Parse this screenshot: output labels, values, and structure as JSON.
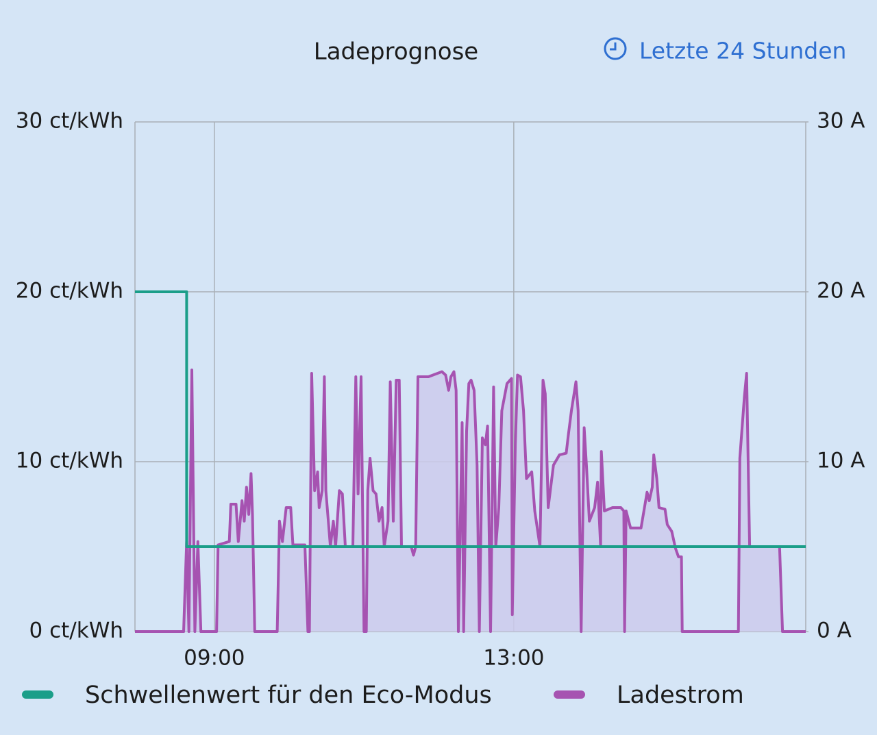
{
  "chart_data": {
    "type": "line",
    "title": "Ladeprognose",
    "range_button": "Letzte 24 Stunden",
    "xlim": [
      7.94,
      16.9
    ],
    "xticks": [
      {
        "value": 9,
        "label": "09:00"
      },
      {
        "value": 13,
        "label": "13:00"
      }
    ],
    "ylim": [
      0,
      30
    ],
    "yticks": [
      {
        "value": 0,
        "label": "0 ct/kWh"
      },
      {
        "value": 10,
        "label": "10 ct/kWh"
      },
      {
        "value": 20,
        "label": "20 ct/kWh"
      },
      {
        "value": 30,
        "label": "30 ct/kWh"
      }
    ],
    "y2lim": [
      0,
      30
    ],
    "y2ticks": [
      {
        "value": 0,
        "label": "0 A"
      },
      {
        "value": 10,
        "label": "10 A"
      },
      {
        "value": 20,
        "label": "20 A"
      },
      {
        "value": 30,
        "label": "30 A"
      }
    ],
    "grid": true,
    "legend": "bottom",
    "series": [
      {
        "name": "Schwellenwert für den Eco-Modus",
        "color": "#1b9e89",
        "x": [
          7.94,
          8.63,
          8.63,
          16.9
        ],
        "values": [
          20,
          20,
          5,
          5
        ]
      },
      {
        "name": "Ladestrom",
        "color": "#a653b1",
        "axis": "y2",
        "fill": "#cccbec",
        "x": [
          7.94,
          8.59,
          8.63,
          8.66,
          8.7,
          8.74,
          8.78,
          8.82,
          9.03,
          9.05,
          9.2,
          9.22,
          9.29,
          9.32,
          9.37,
          9.4,
          9.43,
          9.46,
          9.49,
          9.51,
          9.54,
          9.84,
          9.87,
          9.91,
          9.96,
          10.02,
          10.05,
          10.21,
          10.25,
          10.27,
          10.3,
          10.34,
          10.38,
          10.4,
          10.44,
          10.47,
          10.49,
          10.55,
          10.59,
          10.62,
          10.67,
          10.71,
          10.75,
          10.85,
          10.89,
          10.92,
          10.96,
          11.0,
          11.03,
          11.05,
          11.08,
          11.12,
          11.16,
          11.2,
          11.24,
          11.27,
          11.32,
          11.35,
          11.39,
          11.43,
          11.47,
          11.5,
          11.63,
          11.66,
          11.69,
          11.72,
          11.86,
          12.04,
          12.09,
          12.13,
          12.16,
          12.2,
          12.23,
          12.26,
          12.31,
          12.33,
          12.37,
          12.4,
          12.43,
          12.47,
          12.51,
          12.54,
          12.58,
          12.62,
          12.65,
          12.66,
          12.69,
          12.73,
          12.76,
          12.8,
          12.84,
          12.91,
          12.97,
          12.98,
          13.02,
          13.05,
          13.09,
          13.13,
          13.17,
          13.24,
          13.28,
          13.35,
          13.39,
          13.42,
          13.46,
          13.53,
          13.61,
          13.7,
          13.73,
          13.77,
          13.83,
          13.86,
          13.9,
          13.94,
          13.97,
          14.01,
          14.08,
          14.12,
          14.16,
          14.17,
          14.21,
          14.32,
          14.43,
          14.47,
          14.48,
          14.5,
          14.56,
          14.7,
          14.78,
          14.81,
          14.85,
          14.87,
          14.91,
          14.94,
          15.02,
          15.05,
          15.11,
          15.16,
          15.2,
          15.24,
          15.25,
          16.0,
          16.02,
          16.08,
          16.11,
          16.15,
          16.55,
          16.59,
          16.9
        ],
        "values": [
          0,
          0,
          5.3,
          0,
          15.4,
          0,
          5.3,
          0,
          0,
          5.1,
          5.3,
          7.5,
          7.5,
          5.3,
          7.7,
          6.5,
          8.5,
          6.9,
          9.3,
          6.9,
          0,
          0,
          6.5,
          5.3,
          7.3,
          7.3,
          5.1,
          5.1,
          0,
          0,
          15.2,
          8.3,
          9.4,
          7.3,
          8.3,
          15,
          8.3,
          5,
          6.5,
          5,
          8.3,
          8.1,
          5,
          5,
          15,
          8.1,
          15,
          0,
          0,
          8.3,
          10.2,
          8.3,
          8.1,
          6.5,
          7.3,
          5,
          6.5,
          14.7,
          6.5,
          14.8,
          14.8,
          5,
          5,
          4.5,
          5,
          15,
          15,
          15.3,
          15.1,
          14.2,
          15,
          15.3,
          14.2,
          0,
          12.3,
          0,
          11.8,
          14.6,
          14.8,
          14.2,
          9.8,
          0,
          11.4,
          11,
          12.1,
          9.3,
          0,
          14.4,
          5,
          7.3,
          13,
          14.6,
          14.9,
          1,
          11,
          15.1,
          15,
          13,
          9,
          9.4,
          7.1,
          5,
          14.8,
          14,
          7.3,
          9.8,
          10.4,
          10.5,
          11.6,
          13,
          14.7,
          13,
          0,
          12,
          9.8,
          6.5,
          7.3,
          8.8,
          5,
          10.6,
          7.1,
          7.3,
          7.3,
          7.1,
          0,
          7.1,
          6.1,
          6.1,
          8.2,
          7.7,
          8.5,
          10.4,
          9,
          7.3,
          7.2,
          6.3,
          5.9,
          4.9,
          4.4,
          4.4,
          0,
          0,
          10.2,
          13.8,
          15.2,
          5,
          5,
          0,
          0
        ]
      }
    ]
  }
}
